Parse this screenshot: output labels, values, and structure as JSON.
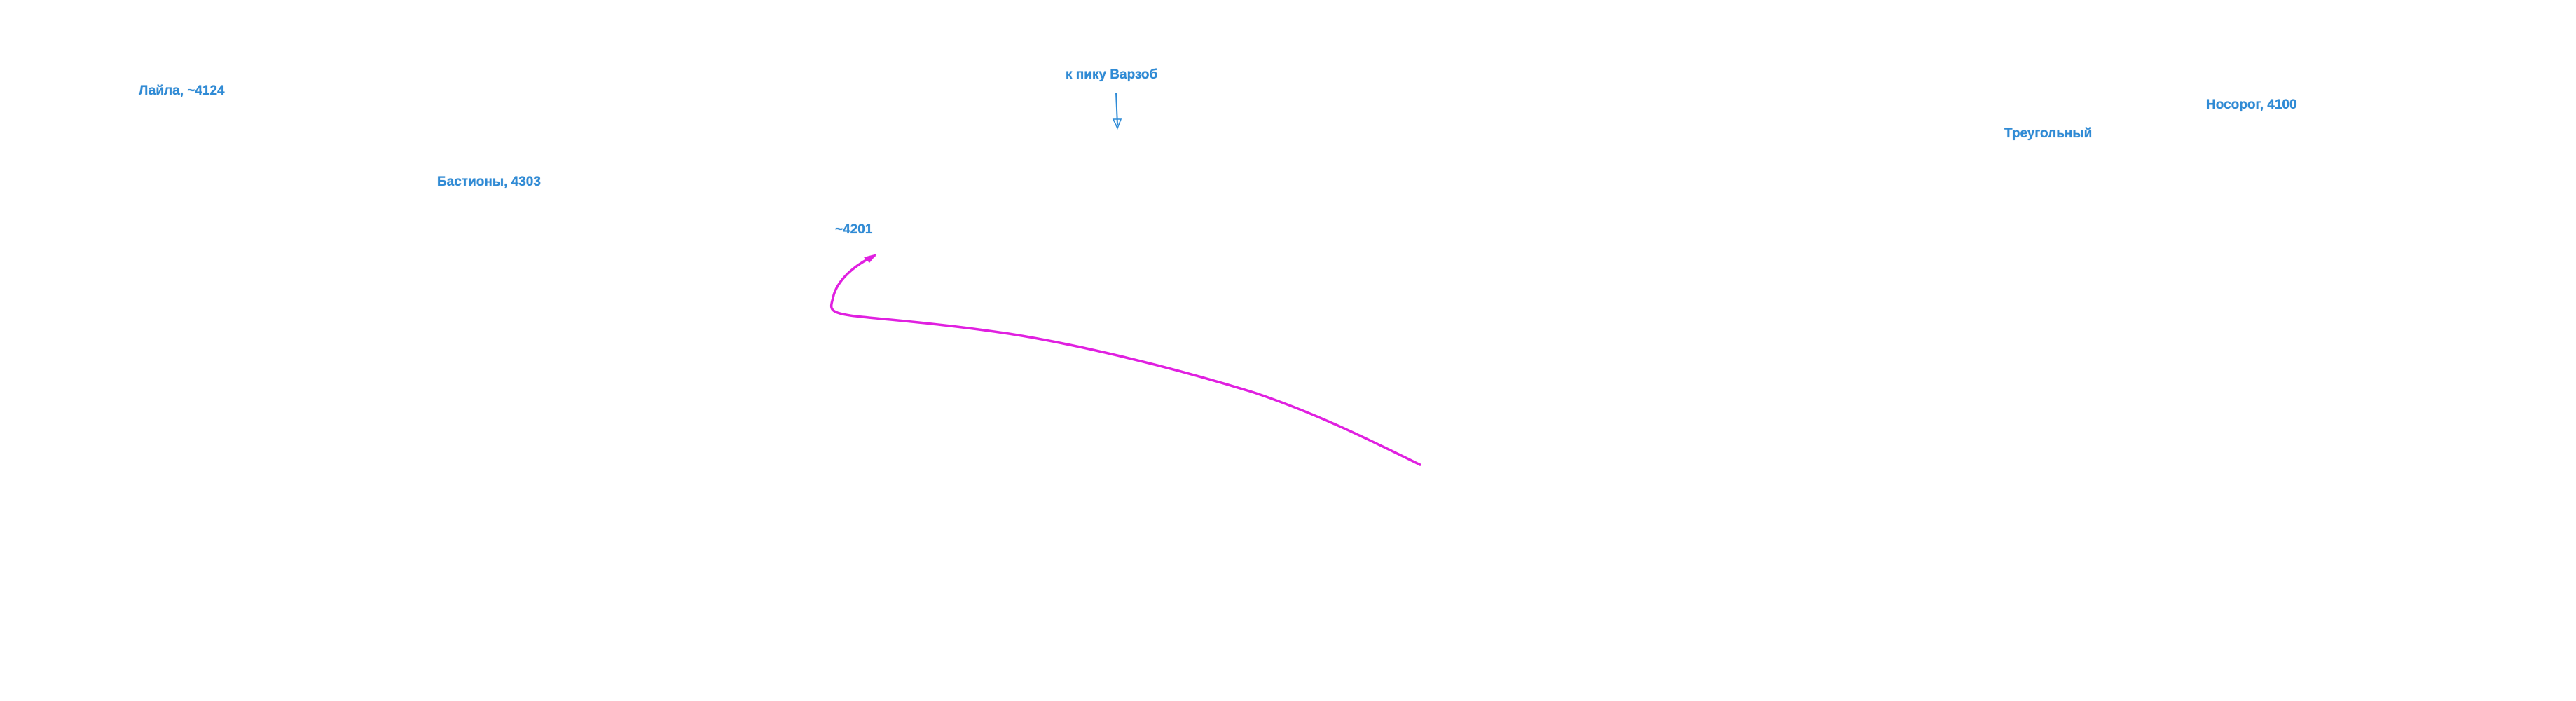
{
  "labels": {
    "laila": "Лайла, ~4124",
    "bastions": "Бастионы, 4303",
    "altitude_4201": "~4201",
    "to_peak": "к пику Варзоб",
    "nosorog": "Носорог, 4100",
    "triangular": "Треугольный"
  },
  "colors": {
    "label": "#2f8bd6",
    "route": "#e020e0"
  }
}
